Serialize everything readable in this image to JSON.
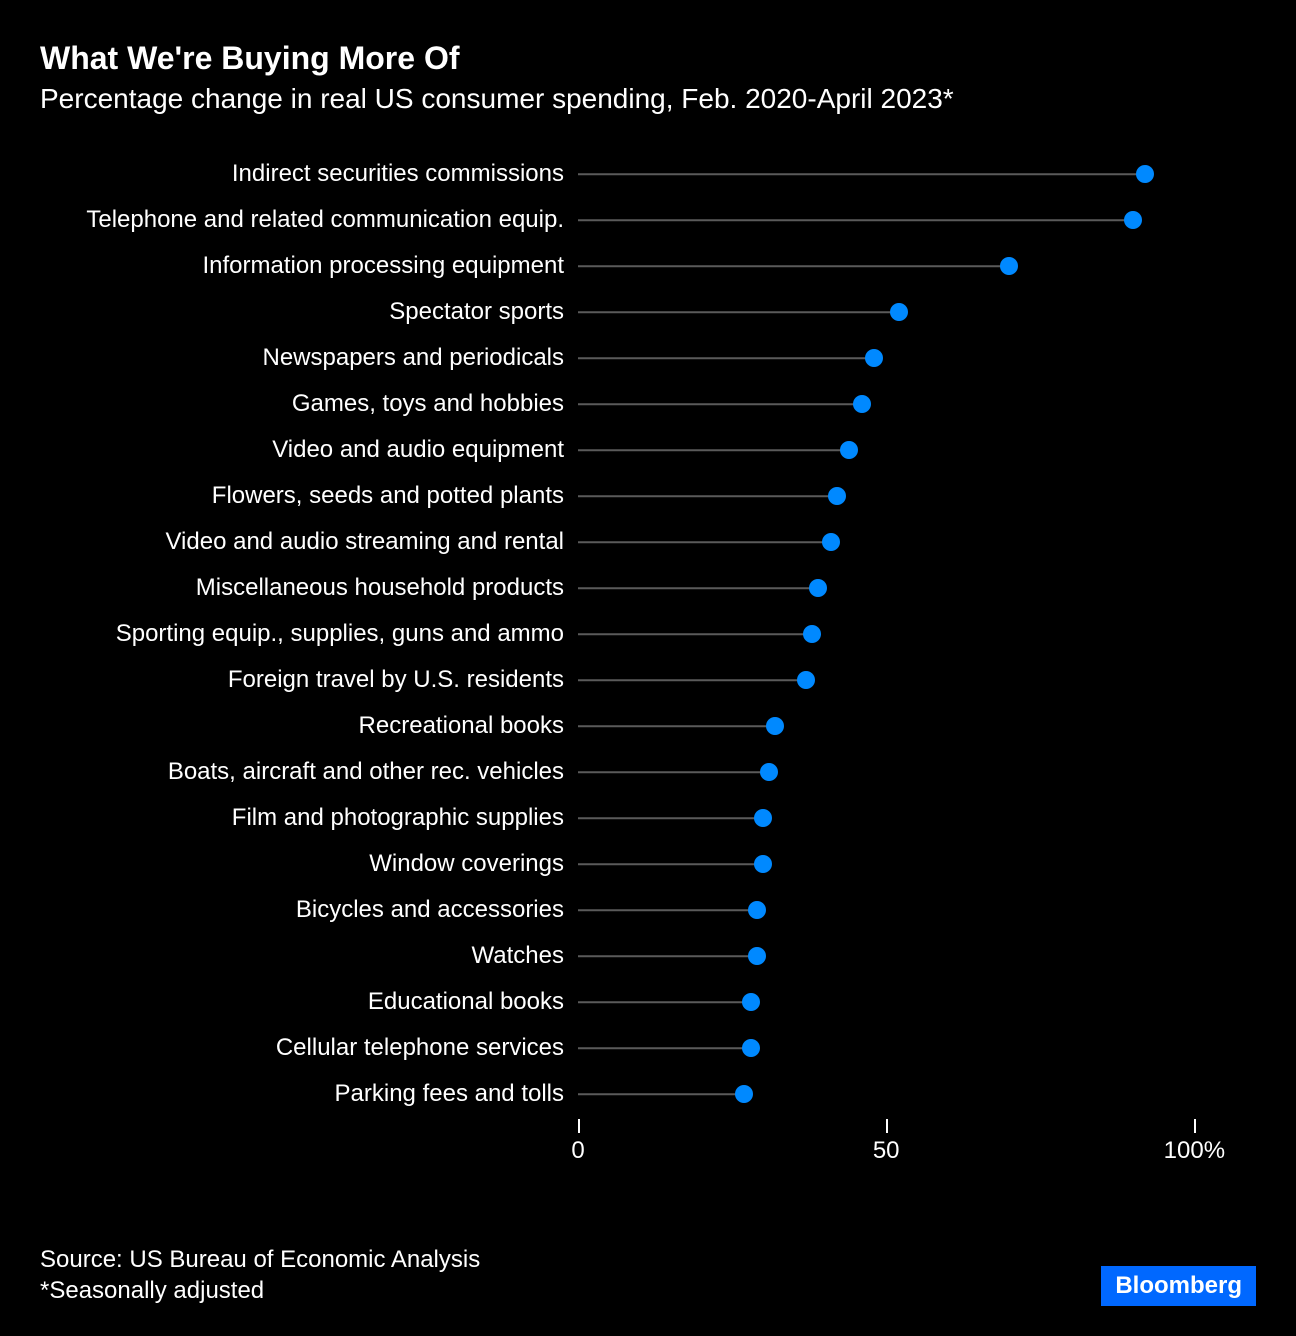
{
  "title": "What We're Buying More Of",
  "subtitle": "Percentage change in real US consumer spending, Feb. 2020-April 2023*",
  "chart": {
    "type": "lollipop",
    "xmin": 0,
    "xmax": 110,
    "xticks": [
      0,
      50,
      100
    ],
    "xtick_labels": [
      "0",
      "50",
      "100%"
    ],
    "dot_color": "#0089ff",
    "stem_color": "#5a5a5a",
    "background_color": "#000000",
    "text_color": "#ffffff",
    "label_fontsize": 24,
    "dot_radius": 9,
    "stem_width": 1.5,
    "items": [
      {
        "label": "Indirect securities commissions",
        "value": 92
      },
      {
        "label": "Telephone and related communication equip.",
        "value": 90
      },
      {
        "label": "Information processing equipment",
        "value": 70
      },
      {
        "label": "Spectator sports",
        "value": 52
      },
      {
        "label": "Newspapers and periodicals",
        "value": 48
      },
      {
        "label": "Games, toys and hobbies",
        "value": 46
      },
      {
        "label": "Video and audio equipment",
        "value": 44
      },
      {
        "label": "Flowers, seeds and potted plants",
        "value": 42
      },
      {
        "label": "Video and audio streaming and rental",
        "value": 41
      },
      {
        "label": "Miscellaneous household products",
        "value": 39
      },
      {
        "label": "Sporting equip., supplies, guns and ammo",
        "value": 38
      },
      {
        "label": "Foreign travel by U.S. residents",
        "value": 37
      },
      {
        "label": "Recreational books",
        "value": 32
      },
      {
        "label": "Boats, aircraft and other rec. vehicles",
        "value": 31
      },
      {
        "label": "Film and photographic supplies",
        "value": 30
      },
      {
        "label": "Window coverings",
        "value": 30
      },
      {
        "label": "Bicycles and accessories",
        "value": 29
      },
      {
        "label": "Watches",
        "value": 29
      },
      {
        "label": "Educational books",
        "value": 28
      },
      {
        "label": "Cellular telephone services",
        "value": 28
      },
      {
        "label": "Parking fees and tolls",
        "value": 27
      }
    ]
  },
  "source": "Source: US Bureau of Economic Analysis",
  "note": "*Seasonally adjusted",
  "brand": "Bloomberg"
}
